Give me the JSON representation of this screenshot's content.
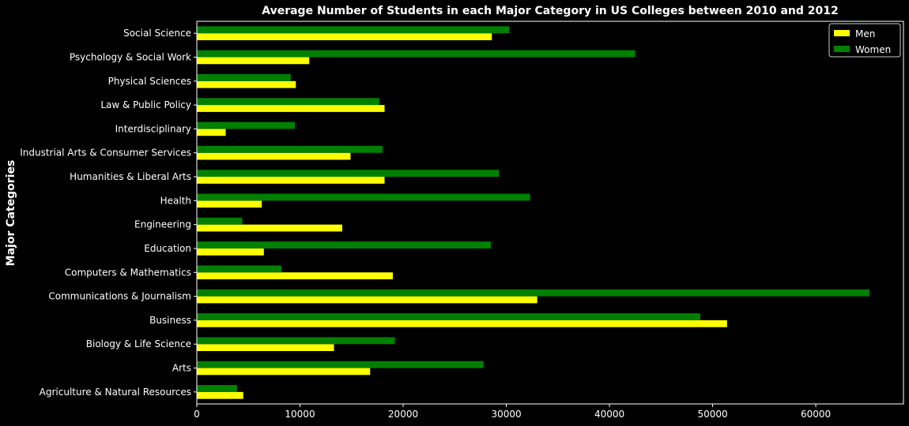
{
  "chart_data": {
    "type": "bar",
    "orientation": "horizontal",
    "title": "Average Number of Students in each Major Category in US Colleges between 2010 and 2012",
    "xlabel": "",
    "ylabel": "Major Categories",
    "xlim": [
      0,
      68500
    ],
    "xticks": [
      0,
      10000,
      20000,
      30000,
      40000,
      50000,
      60000
    ],
    "xtick_labels": [
      "0",
      "10000",
      "20000",
      "30000",
      "40000",
      "50000",
      "60000"
    ],
    "grid": false,
    "legend_position": "top-right",
    "background": "#000000",
    "categories": [
      "Agriculture & Natural Resources",
      "Arts",
      "Biology & Life Science",
      "Business",
      "Communications & Journalism",
      "Computers & Mathematics",
      "Education",
      "Engineering",
      "Health",
      "Humanities & Liberal Arts",
      "Industrial Arts & Consumer Services",
      "Interdisciplinary",
      "Law & Public Policy",
      "Physical Sciences",
      "Psychology & Social Work",
      "Social Science"
    ],
    "series": [
      {
        "name": "Men",
        "color": "#ffff00",
        "values": [
          4500,
          16800,
          13300,
          51400,
          33000,
          19000,
          6500,
          14100,
          6300,
          18200,
          14900,
          2800,
          18200,
          9600,
          10900,
          28600
        ]
      },
      {
        "name": "Women",
        "color": "#008000",
        "values": [
          3900,
          27800,
          19200,
          48800,
          65200,
          8200,
          28500,
          4400,
          32300,
          29300,
          18000,
          9500,
          17700,
          9100,
          42500,
          30300
        ]
      }
    ]
  }
}
